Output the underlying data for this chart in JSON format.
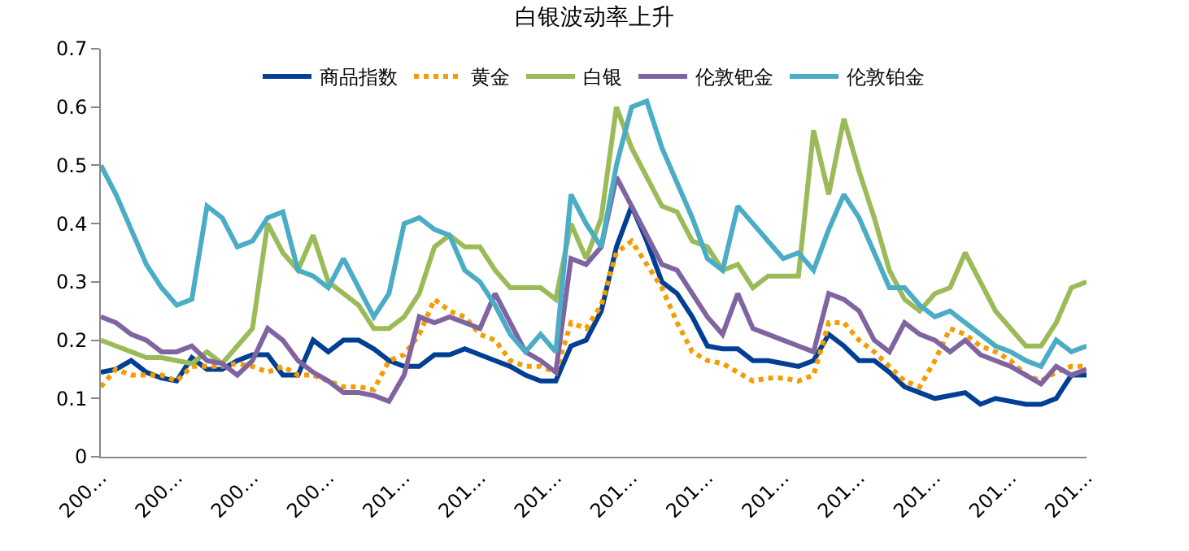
{
  "chart_data": {
    "type": "line",
    "title": "白银波动率上升",
    "categories": [
      "200…",
      null,
      null,
      null,
      null,
      "200…",
      null,
      null,
      null,
      null,
      "200…",
      null,
      null,
      null,
      null,
      "200…",
      null,
      null,
      null,
      null,
      "201…",
      null,
      null,
      null,
      null,
      "201…",
      null,
      null,
      null,
      null,
      "201…",
      null,
      null,
      null,
      null,
      "201…",
      null,
      null,
      null,
      null,
      "201…",
      null,
      null,
      null,
      null,
      "201…",
      null,
      null,
      null,
      null,
      "201…",
      null,
      null,
      null,
      null,
      "201…",
      null,
      null,
      null,
      null,
      "201…",
      null,
      null,
      null,
      null,
      "201…"
    ],
    "ylim": [
      0,
      0.7
    ],
    "yticks": [
      0,
      0.1,
      0.2,
      0.3,
      0.4,
      0.5,
      0.6,
      0.7
    ],
    "legend": "top",
    "marker": "none",
    "series": [
      {
        "name": "商品指数",
        "color": "#003f94",
        "values": [
          0.145,
          0.15,
          0.165,
          0.145,
          0.135,
          0.13,
          0.17,
          0.15,
          0.15,
          0.165,
          0.175,
          0.175,
          0.14,
          0.14,
          0.2,
          0.18,
          0.2,
          0.2,
          0.185,
          0.165,
          0.155,
          0.155,
          0.175,
          0.175,
          0.185,
          0.175,
          0.165,
          0.155,
          0.14,
          0.13,
          0.13,
          0.19,
          0.2,
          0.25,
          0.36,
          0.43,
          0.37,
          0.3,
          0.28,
          0.24,
          0.19,
          0.185,
          0.185,
          0.165,
          0.165,
          0.16,
          0.155,
          0.165,
          0.21,
          0.19,
          0.165,
          0.165,
          0.145,
          0.12,
          0.11,
          0.1,
          0.105,
          0.11,
          0.09,
          0.1,
          0.095,
          0.09,
          0.09,
          0.1,
          0.14,
          0.14
        ]
      },
      {
        "name": "黄金",
        "color": "#f59c00",
        "line_style": "dotted",
        "values": [
          0.12,
          0.15,
          0.14,
          0.14,
          0.14,
          0.13,
          0.155,
          0.155,
          0.155,
          0.16,
          0.155,
          0.145,
          0.155,
          0.14,
          0.14,
          0.13,
          0.12,
          0.12,
          0.115,
          0.165,
          0.175,
          0.21,
          0.27,
          0.25,
          0.24,
          0.21,
          0.2,
          0.165,
          0.155,
          0.155,
          0.145,
          0.23,
          0.22,
          0.26,
          0.35,
          0.37,
          0.33,
          0.29,
          0.23,
          0.18,
          0.165,
          0.16,
          0.145,
          0.13,
          0.135,
          0.135,
          0.13,
          0.14,
          0.23,
          0.23,
          0.2,
          0.18,
          0.155,
          0.13,
          0.12,
          0.165,
          0.22,
          0.21,
          0.19,
          0.18,
          0.165,
          0.14,
          0.13,
          0.145,
          0.155,
          0.155
        ]
      },
      {
        "name": "白银",
        "color": "#9bbb59",
        "values": [
          0.2,
          0.19,
          0.18,
          0.17,
          0.17,
          0.165,
          0.16,
          0.18,
          0.16,
          0.19,
          0.22,
          0.4,
          0.35,
          0.32,
          0.38,
          0.3,
          0.28,
          0.26,
          0.22,
          0.22,
          0.24,
          0.28,
          0.36,
          0.38,
          0.36,
          0.36,
          0.32,
          0.29,
          0.29,
          0.29,
          0.27,
          0.4,
          0.34,
          0.41,
          0.6,
          0.53,
          0.48,
          0.43,
          0.42,
          0.37,
          0.36,
          0.32,
          0.33,
          0.29,
          0.31,
          0.31,
          0.31,
          0.56,
          0.45,
          0.58,
          0.49,
          0.41,
          0.32,
          0.27,
          0.25,
          0.28,
          0.29,
          0.35,
          0.3,
          0.25,
          0.22,
          0.19,
          0.19,
          0.23,
          0.29,
          0.3
        ]
      },
      {
        "name": "伦敦钯金",
        "color": "#8064a2",
        "values": [
          0.24,
          0.23,
          0.21,
          0.2,
          0.18,
          0.18,
          0.19,
          0.165,
          0.16,
          0.14,
          0.165,
          0.22,
          0.2,
          0.165,
          0.145,
          0.13,
          0.11,
          0.11,
          0.105,
          0.095,
          0.14,
          0.24,
          0.23,
          0.24,
          0.23,
          0.22,
          0.28,
          0.23,
          0.18,
          0.165,
          0.145,
          0.34,
          0.33,
          0.36,
          0.48,
          0.43,
          0.38,
          0.33,
          0.32,
          0.28,
          0.24,
          0.21,
          0.28,
          0.22,
          0.21,
          0.2,
          0.19,
          0.18,
          0.28,
          0.27,
          0.25,
          0.2,
          0.18,
          0.23,
          0.21,
          0.2,
          0.18,
          0.2,
          0.175,
          0.165,
          0.155,
          0.14,
          0.125,
          0.155,
          0.14,
          0.15
        ]
      },
      {
        "name": "伦敦铂金",
        "color": "#4bacc6",
        "values": [
          0.5,
          0.45,
          0.39,
          0.33,
          0.29,
          0.26,
          0.27,
          0.43,
          0.41,
          0.36,
          0.37,
          0.41,
          0.42,
          0.32,
          0.31,
          0.29,
          0.34,
          0.29,
          0.24,
          0.28,
          0.4,
          0.41,
          0.39,
          0.38,
          0.32,
          0.3,
          0.26,
          0.21,
          0.18,
          0.21,
          0.18,
          0.45,
          0.4,
          0.36,
          0.5,
          0.6,
          0.61,
          0.53,
          0.47,
          0.41,
          0.34,
          0.32,
          0.43,
          0.4,
          0.37,
          0.34,
          0.35,
          0.32,
          0.39,
          0.45,
          0.41,
          0.35,
          0.29,
          0.29,
          0.26,
          0.24,
          0.25,
          0.23,
          0.21,
          0.19,
          0.18,
          0.165,
          0.155,
          0.2,
          0.18,
          0.19
        ]
      }
    ]
  }
}
